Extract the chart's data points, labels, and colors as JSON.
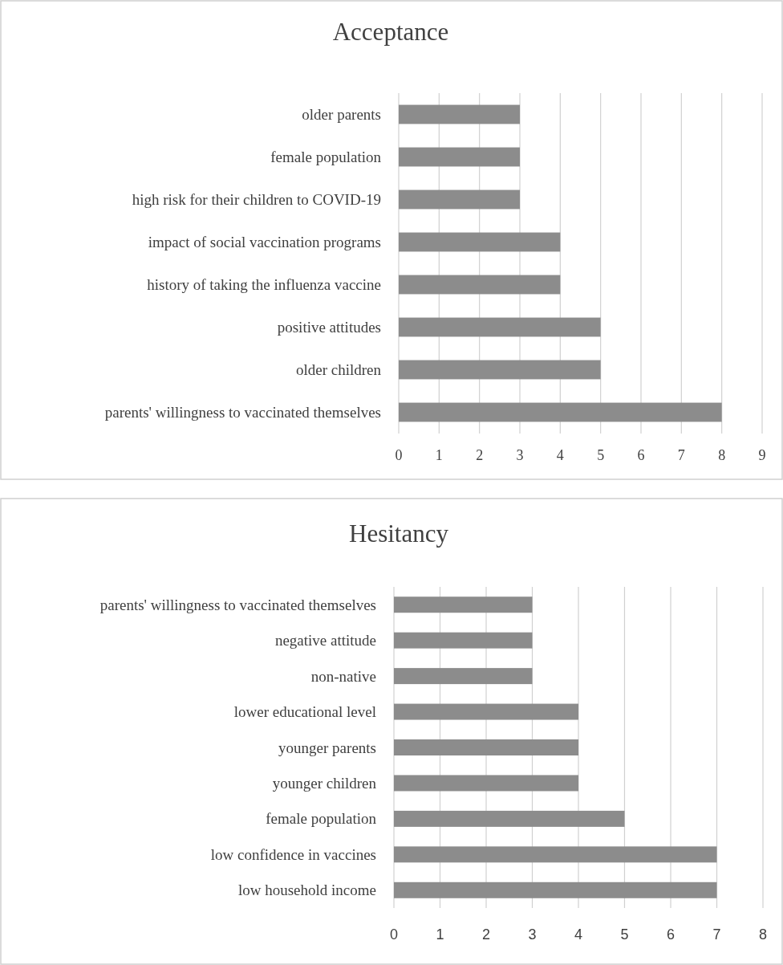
{
  "chart_data": [
    {
      "type": "bar",
      "orientation": "horizontal",
      "title": "Acceptance",
      "categories": [
        "older parents",
        "female population",
        "high risk for their children to COVID-19",
        "impact of social vaccination programs",
        "history of taking the influenza vaccine",
        "positive attitudes",
        "older children",
        "parents' willingness to vaccinated themselves"
      ],
      "values": [
        3,
        3,
        3,
        4,
        4,
        5,
        5,
        8
      ],
      "color": "#8c8c8c",
      "xlim": [
        0,
        9
      ],
      "xticks": [
        0,
        1,
        2,
        3,
        4,
        5,
        6,
        7,
        8,
        9
      ],
      "grid": "x"
    },
    {
      "type": "bar",
      "orientation": "horizontal",
      "title": "Hesitancy",
      "categories": [
        "parents' willingness to vaccinated themselves",
        "negative attitude",
        "non-native",
        "lower educational level",
        "younger parents",
        "younger children",
        "female population",
        "low confidence in vaccines",
        "low household income"
      ],
      "values": [
        3,
        3,
        3,
        4,
        4,
        4,
        5,
        7,
        7
      ],
      "color": "#8c8c8c",
      "xlim": [
        0,
        8
      ],
      "xticks": [
        0,
        1,
        2,
        3,
        4,
        5,
        6,
        7,
        8
      ],
      "grid": "x"
    }
  ]
}
